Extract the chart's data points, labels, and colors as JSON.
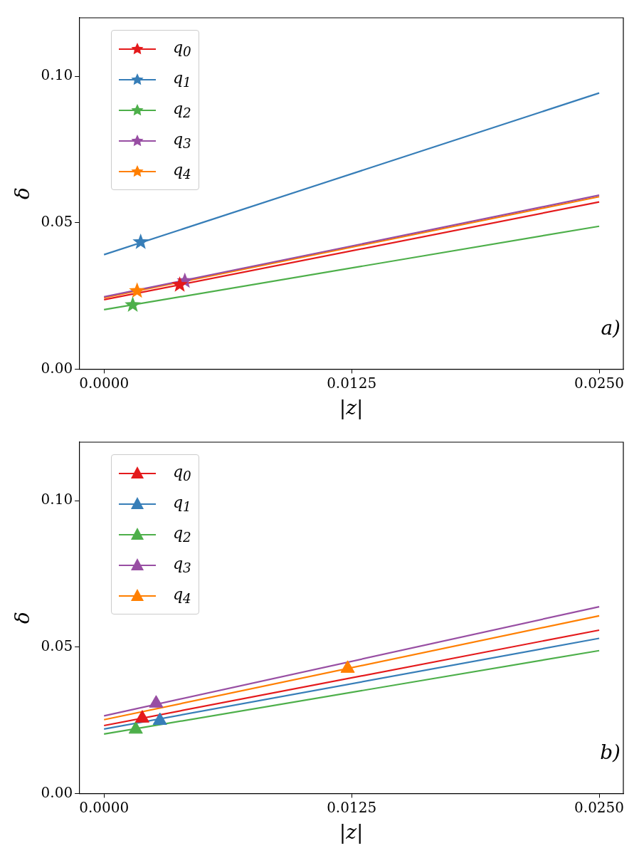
{
  "chart_data": [
    {
      "type": "line",
      "xlabel": "|z|",
      "ylabel": "δ",
      "annotations": [
        "a)"
      ],
      "xlim": [
        -0.00126,
        0.02622
      ],
      "ylim": [
        0,
        0.12
      ],
      "xticks": [
        {
          "value": 0,
          "label": "0.0000"
        },
        {
          "value": 0.0125,
          "label": "0.0125"
        },
        {
          "value": 0.025,
          "label": "0.0250"
        }
      ],
      "yticks": [
        {
          "value": 0,
          "label": "0.00"
        },
        {
          "value": 0.05,
          "label": "0.05"
        },
        {
          "value": 0.1,
          "label": "0.10"
        }
      ],
      "grid": false,
      "legend": "top left",
      "marker": "star",
      "line_style": "solid",
      "series": [
        {
          "name": "q$_{0}$",
          "color": "#e41a1c",
          "marker": "none",
          "x": [
            0,
            0.025
          ],
          "values": [
            0.0237,
            0.0571
          ]
        },
        {
          "name": "q$_{1}$",
          "color": "#377eb8",
          "marker": "none",
          "x": [
            0,
            0.025
          ],
          "values": [
            0.0391,
            0.0943
          ]
        },
        {
          "name": "q$_{2}$",
          "color": "#4daf4a",
          "marker": "none",
          "x": [
            0,
            0.025
          ],
          "values": [
            0.0203,
            0.0488
          ]
        },
        {
          "name": "q$_{3}$",
          "color": "#984ea3",
          "marker": "none",
          "x": [
            0,
            0.025
          ],
          "values": [
            0.0247,
            0.0594
          ]
        },
        {
          "name": "q$_{4}$",
          "color": "#ff7f00",
          "marker": "none",
          "x": [
            0,
            0.025
          ],
          "values": [
            0.0244,
            0.0589
          ]
        },
        {
          "type": "scatter",
          "color": "#e41a1c",
          "x": [
            0.00382
          ],
          "values": [
            0.0288
          ]
        },
        {
          "type": "scatter",
          "color": "#377eb8",
          "x": [
            0.00185
          ],
          "values": [
            0.0434
          ]
        },
        {
          "type": "scatter",
          "color": "#4daf4a",
          "x": [
            0.00145
          ],
          "values": [
            0.0219
          ]
        },
        {
          "type": "scatter",
          "color": "#984ea3",
          "x": [
            0.00408
          ],
          "values": [
            0.0301
          ]
        },
        {
          "type": "scatter",
          "color": "#ff7f00",
          "x": [
            0.00167
          ],
          "values": [
            0.0267
          ]
        }
      ]
    },
    {
      "type": "line",
      "xlabel": "|z|",
      "ylabel": "δ",
      "annotations": [
        "b)"
      ],
      "xlim": [
        -0.00126,
        0.02622
      ],
      "ylim": [
        0,
        0.12
      ],
      "xticks": [
        {
          "value": 0,
          "label": "0.0000"
        },
        {
          "value": 0.0125,
          "label": "0.0125"
        },
        {
          "value": 0.025,
          "label": "0.0250"
        }
      ],
      "yticks": [
        {
          "value": 0,
          "label": "0.00"
        },
        {
          "value": 0.05,
          "label": "0.05"
        },
        {
          "value": 0.1,
          "label": "0.10"
        }
      ],
      "grid": false,
      "legend": "top left",
      "marker": "triangle",
      "line_style": "solid",
      "series": [
        {
          "name": "q$_{0}$",
          "color": "#e41a1c",
          "marker": "none",
          "x": [
            0,
            0.025
          ],
          "values": [
            0.0232,
            0.0558
          ]
        },
        {
          "name": "q$_{1}$",
          "color": "#377eb8",
          "marker": "none",
          "x": [
            0,
            0.025
          ],
          "values": [
            0.022,
            0.053
          ]
        },
        {
          "name": "q$_{2}$",
          "color": "#4daf4a",
          "marker": "none",
          "x": [
            0,
            0.025
          ],
          "values": [
            0.0203,
            0.0488
          ]
        },
        {
          "name": "q$_{3}$",
          "color": "#984ea3",
          "marker": "none",
          "x": [
            0,
            0.025
          ],
          "values": [
            0.0265,
            0.0638
          ]
        },
        {
          "name": "q$_{4}$",
          "color": "#ff7f00",
          "marker": "none",
          "x": [
            0,
            0.025
          ],
          "values": [
            0.0252,
            0.0607
          ]
        },
        {
          "type": "scatter",
          "color": "#e41a1c",
          "x": [
            0.00193
          ],
          "values": [
            0.0257
          ]
        },
        {
          "type": "scatter",
          "color": "#377eb8",
          "x": [
            0.00282
          ],
          "values": [
            0.0249
          ]
        },
        {
          "type": "scatter",
          "color": "#4daf4a",
          "x": [
            0.0016
          ],
          "values": [
            0.0219
          ]
        },
        {
          "type": "scatter",
          "color": "#984ea3",
          "x": [
            0.00263
          ],
          "values": [
            0.0308
          ]
        },
        {
          "type": "scatter",
          "color": "#ff7f00",
          "x": [
            0.0123
          ],
          "values": [
            0.0427
          ]
        }
      ]
    }
  ]
}
